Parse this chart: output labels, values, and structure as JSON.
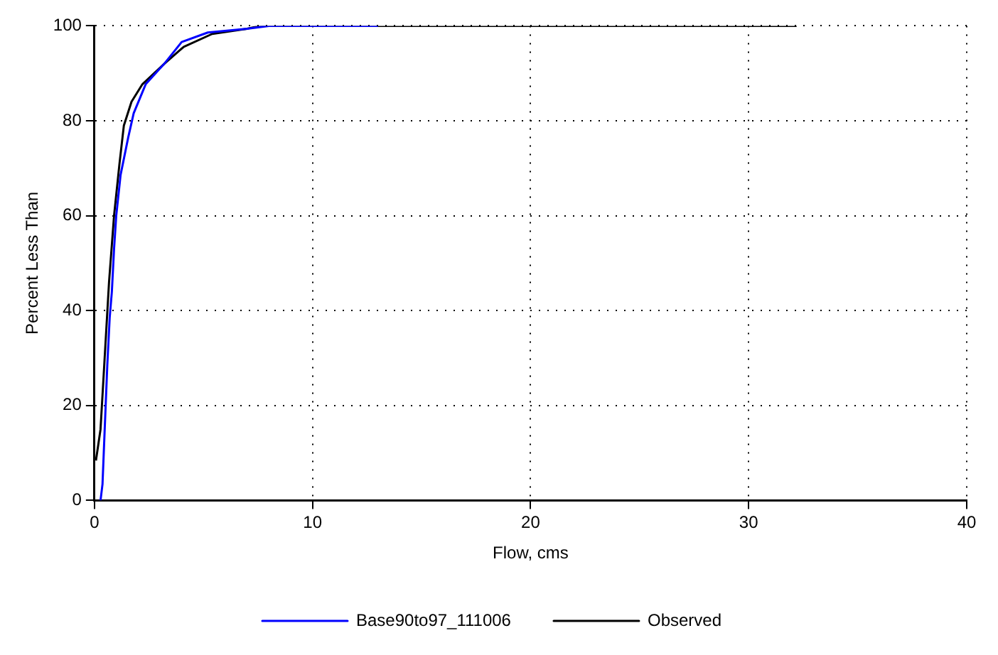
{
  "chart_data": {
    "type": "line",
    "xlabel": "Flow, cms",
    "ylabel": "Percent Less Than",
    "xlim": [
      0,
      40
    ],
    "xticks": [
      0,
      10,
      20,
      30,
      40
    ],
    "ylim": [
      0,
      100
    ],
    "yticks": [
      0,
      20,
      40,
      60,
      80,
      100
    ],
    "grid": true,
    "legend": "bottom",
    "marker": "none",
    "line_style": "solid",
    "series": [
      {
        "name": "Base90to97_111006",
        "color": "#0000ff",
        "x": [
          0.28,
          0.37,
          0.48,
          0.59,
          0.7,
          0.8,
          0.9,
          1.0,
          1.2,
          1.55,
          1.8,
          2.35,
          3.2,
          4.0,
          5.2,
          7.0,
          8.0,
          13.0
        ],
        "values": [
          0,
          3.4,
          16,
          28.5,
          38.5,
          44,
          53,
          60,
          68.6,
          76.5,
          81.6,
          87.7,
          92,
          96.6,
          98.6,
          99.4,
          100,
          100
        ]
      },
      {
        "name": "Observed",
        "color": "#000000",
        "x": [
          0.07,
          0.28,
          0.45,
          0.67,
          0.9,
          1.15,
          1.35,
          1.7,
          2.2,
          3.2,
          4.1,
          5.4,
          7.0,
          7.6,
          32.2
        ],
        "values": [
          8.4,
          15,
          28.5,
          46,
          60,
          71,
          79,
          84,
          87.7,
          92,
          95.6,
          98.3,
          99.4,
          100,
          100
        ]
      }
    ]
  }
}
